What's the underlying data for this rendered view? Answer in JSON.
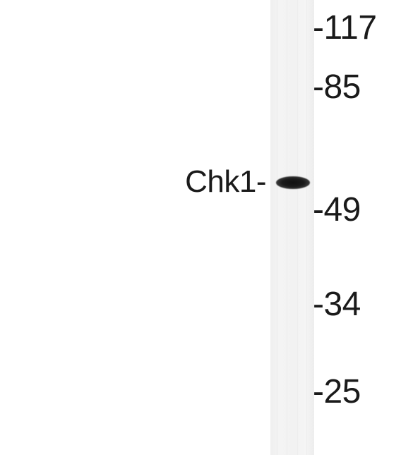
{
  "band_label": "Chk1-",
  "markers": [
    {
      "label": "-117"
    },
    {
      "label": "-85"
    },
    {
      "label": "-49"
    },
    {
      "label": "-34"
    },
    {
      "label": "-25"
    }
  ],
  "colors": {
    "background": "#ffffff",
    "lane": "#f2f2f2",
    "band": "#1b1b1b",
    "text": "#1a1a1a"
  }
}
